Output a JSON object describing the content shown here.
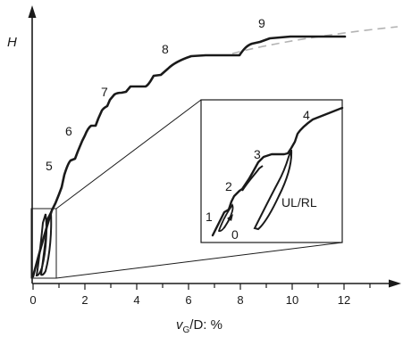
{
  "axes": {
    "y_label": "H",
    "x_label_main": "v",
    "x_label_sub": "G",
    "x_label_rest": "/D: %",
    "x_ticks": [
      "0",
      "2",
      "4",
      "6",
      "8",
      "10",
      "12"
    ]
  },
  "main_curve": {
    "stage_labels": [
      "5",
      "6",
      "7",
      "8",
      "9"
    ]
  },
  "inset": {
    "stage_labels": [
      "1",
      "2",
      "3",
      "4"
    ],
    "start_label": "0",
    "loop_label": "UL/RL"
  },
  "colors": {
    "curve": "#1a1a1a",
    "asymptote": "#b3b3b3",
    "axis": "#1a1a1a"
  }
}
